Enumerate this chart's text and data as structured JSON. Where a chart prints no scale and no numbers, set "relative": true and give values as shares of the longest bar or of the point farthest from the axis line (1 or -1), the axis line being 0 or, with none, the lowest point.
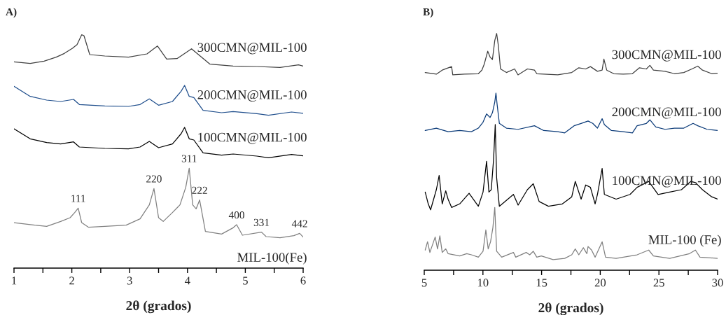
{
  "chart_data": [
    {
      "type": "line",
      "title": "A)",
      "xlabel": "2θ (grados)",
      "relative": true,
      "tick_labels": "x",
      "grid": false,
      "legend": false,
      "marker": "none",
      "line_style": "solid",
      "xlim": [
        1,
        6
      ],
      "xticks": [
        1,
        {
          "value": 1.5,
          "label": null
        },
        2,
        {
          "value": 2.5,
          "label": null
        },
        3,
        {
          "value": 3.5,
          "label": null
        },
        4,
        {
          "value": 4.5,
          "label": null
        },
        5,
        {
          "value": 5.5,
          "label": null
        },
        6
      ],
      "series": [
        {
          "name": "300CMN@MIL-100",
          "color": "#404040",
          "x": [
            1.0,
            1.28,
            1.52,
            1.73,
            1.87,
            2.01,
            2.09,
            2.17,
            2.21,
            2.31,
            2.57,
            2.98,
            3.3,
            3.48,
            3.64,
            3.82,
            4.07,
            4.19,
            4.39,
            4.79,
            5.2,
            5.6,
            5.92,
            6.0
          ],
          "values": [
            0.884,
            0.877,
            0.887,
            0.904,
            0.92,
            0.942,
            0.958,
            1.0,
            0.996,
            0.915,
            0.909,
            0.904,
            0.918,
            0.952,
            0.896,
            0.898,
            0.94,
            0.915,
            0.874,
            0.866,
            0.864,
            0.86,
            0.871,
            0.866
          ]
        },
        {
          "name": "200CMN@MIL-100",
          "color": "#1f4e8c",
          "x": [
            1.0,
            1.28,
            1.565,
            1.807,
            2.03,
            2.13,
            2.57,
            2.98,
            3.18,
            3.34,
            3.5,
            3.74,
            3.89,
            3.95,
            4.03,
            4.11,
            4.27,
            4.59,
            4.79,
            5.2,
            5.4,
            5.8,
            6.0
          ],
          "values": [
            0.779,
            0.736,
            0.72,
            0.714,
            0.723,
            0.701,
            0.695,
            0.693,
            0.701,
            0.725,
            0.698,
            0.714,
            0.758,
            0.783,
            0.736,
            0.731,
            0.676,
            0.666,
            0.671,
            0.662,
            0.655,
            0.669,
            0.663
          ]
        },
        {
          "name": "100CMN@MIL-100",
          "color": "#000000",
          "x": [
            1.0,
            1.28,
            1.565,
            1.807,
            2.03,
            2.13,
            2.57,
            2.98,
            3.18,
            3.34,
            3.5,
            3.74,
            3.89,
            3.95,
            4.03,
            4.11,
            4.27,
            4.59,
            4.79,
            5.2,
            5.4,
            5.8,
            6.0
          ],
          "values": [
            0.597,
            0.554,
            0.538,
            0.532,
            0.541,
            0.519,
            0.513,
            0.511,
            0.519,
            0.543,
            0.516,
            0.532,
            0.576,
            0.603,
            0.554,
            0.549,
            0.494,
            0.484,
            0.489,
            0.48,
            0.473,
            0.487,
            0.481
          ]
        },
        {
          "name": "MIL-100(Fe)",
          "color": "#808080",
          "x": [
            1.0,
            1.36,
            1.565,
            1.807,
            1.97,
            2.05,
            2.11,
            2.17,
            2.29,
            2.57,
            2.94,
            3.18,
            3.34,
            3.42,
            3.5,
            3.58,
            3.74,
            3.87,
            3.97,
            4.03,
            4.09,
            4.15,
            4.21,
            4.31,
            4.59,
            4.79,
            4.85,
            4.95,
            5.28,
            5.36,
            5.6,
            5.84,
            5.94,
            6.0
          ],
          "values": [
            0.195,
            0.184,
            0.179,
            0.2,
            0.216,
            0.238,
            0.257,
            0.195,
            0.175,
            0.179,
            0.184,
            0.211,
            0.271,
            0.341,
            0.216,
            0.2,
            0.238,
            0.271,
            0.346,
            0.428,
            0.271,
            0.254,
            0.292,
            0.157,
            0.146,
            0.173,
            0.186,
            0.141,
            0.154,
            0.135,
            0.13,
            0.139,
            0.149,
            0.133
          ]
        }
      ],
      "annotations": [
        {
          "text": "111",
          "x": 2.11,
          "y": 0.257
        },
        {
          "text": "220",
          "x": 3.42,
          "y": 0.341
        },
        {
          "text": "311",
          "x": 4.03,
          "y": 0.428
        },
        {
          "text": "222",
          "x": 4.21,
          "y": 0.292
        },
        {
          "text": "400",
          "x": 4.85,
          "y": 0.186
        },
        {
          "text": "331",
          "x": 5.28,
          "y": 0.154
        },
        {
          "text": "442",
          "x": 5.94,
          "y": 0.149
        }
      ]
    },
    {
      "type": "line",
      "title": "B)",
      "xlabel": "2θ (grados)",
      "relative": true,
      "tick_labels": "x",
      "grid": false,
      "legend": false,
      "marker": "none",
      "line_style": "solid",
      "xlim": [
        5,
        30
      ],
      "xticks": [
        5,
        {
          "value": 7.5,
          "label": null
        },
        10,
        {
          "value": 12.5,
          "label": null
        },
        15,
        {
          "value": 17.5,
          "label": null
        },
        20,
        {
          "value": 22.5,
          "label": null
        },
        25,
        {
          "value": 27.5,
          "label": null
        },
        30
      ],
      "series": [
        {
          "name": "300CMN@MIL-100",
          "color": "#404040",
          "x": [
            5.08,
            6.03,
            6.53,
            7.33,
            7.43,
            8.42,
            9.61,
            9.91,
            10.11,
            10.41,
            10.61,
            10.81,
            11.01,
            11.17,
            11.31,
            11.5,
            12.0,
            12.7,
            12.99,
            13.79,
            14.39,
            14.59,
            15.18,
            16.38,
            17.57,
            18.17,
            18.76,
            19.16,
            19.76,
            20.16,
            20.31,
            20.55,
            21.15,
            21.95,
            22.74,
            23.34,
            23.93,
            24.23,
            24.53,
            25.52,
            26.32,
            27.12,
            27.81,
            28.31,
            28.71,
            29.5,
            30.0
          ],
          "values": [
            0.835,
            0.828,
            0.845,
            0.86,
            0.825,
            0.828,
            0.83,
            0.845,
            0.87,
            0.925,
            0.9,
            0.89,
            0.97,
            1.0,
            0.95,
            0.85,
            0.835,
            0.85,
            0.825,
            0.85,
            0.845,
            0.83,
            0.828,
            0.825,
            0.835,
            0.855,
            0.85,
            0.86,
            0.84,
            0.845,
            0.892,
            0.845,
            0.83,
            0.828,
            0.83,
            0.855,
            0.85,
            0.865,
            0.845,
            0.84,
            0.83,
            0.835,
            0.85,
            0.862,
            0.845,
            0.83,
            0.832
          ]
        },
        {
          "name": "200CMN@MIL-100",
          "color": "#0a3a78",
          "x": [
            5.08,
            6.03,
            7.03,
            8.02,
            9.02,
            9.61,
            10.01,
            10.31,
            10.61,
            10.81,
            11.01,
            11.11,
            11.21,
            11.4,
            12.0,
            13.0,
            14.39,
            15.18,
            16.38,
            16.97,
            17.77,
            18.37,
            18.96,
            19.36,
            19.76,
            20.16,
            20.35,
            20.95,
            21.95,
            22.74,
            23.14,
            23.93,
            24.23,
            24.73,
            25.52,
            26.32,
            27.12,
            27.91,
            28.31,
            29.1,
            30.0
          ],
          "values": [
            0.59,
            0.6,
            0.585,
            0.59,
            0.585,
            0.6,
            0.625,
            0.66,
            0.645,
            0.665,
            0.71,
            0.748,
            0.7,
            0.62,
            0.6,
            0.595,
            0.61,
            0.59,
            0.585,
            0.58,
            0.61,
            0.62,
            0.63,
            0.62,
            0.6,
            0.64,
            0.615,
            0.59,
            0.585,
            0.58,
            0.61,
            0.62,
            0.635,
            0.605,
            0.595,
            0.6,
            0.6,
            0.62,
            0.61,
            0.595,
            0.59
          ]
        },
        {
          "name": "100CMN@MIL-100",
          "color": "#000000",
          "x": [
            5.08,
            5.34,
            5.54,
            6.03,
            6.27,
            6.53,
            6.83,
            7.03,
            7.33,
            8.02,
            8.82,
            9.61,
            10.01,
            10.31,
            10.51,
            10.71,
            10.91,
            11.05,
            11.17,
            11.4,
            12.6,
            13.0,
            13.79,
            14.29,
            14.79,
            15.58,
            16.77,
            17.57,
            17.87,
            18.37,
            18.76,
            19.16,
            19.56,
            19.76,
            20.16,
            20.35,
            21.35,
            22.54,
            23.14,
            24.13,
            24.93,
            25.92,
            26.92,
            27.71,
            28.11,
            28.71,
            29.5,
            30.0
          ],
          "values": [
            0.33,
            0.28,
            0.255,
            0.34,
            0.4,
            0.28,
            0.335,
            0.3,
            0.265,
            0.28,
            0.325,
            0.27,
            0.33,
            0.46,
            0.33,
            0.34,
            0.47,
            0.615,
            0.39,
            0.27,
            0.32,
            0.275,
            0.34,
            0.365,
            0.29,
            0.27,
            0.28,
            0.31,
            0.375,
            0.3,
            0.36,
            0.35,
            0.28,
            0.32,
            0.43,
            0.32,
            0.3,
            0.32,
            0.35,
            0.375,
            0.32,
            0.33,
            0.34,
            0.375,
            0.37,
            0.34,
            0.31,
            0.3
          ]
        },
        {
          "name": "MIL-100 (Fe)",
          "color": "#808080",
          "x": [
            5.08,
            5.28,
            5.48,
            5.93,
            6.13,
            6.33,
            6.53,
            6.83,
            7.03,
            8.02,
            8.62,
            9.02,
            9.61,
            10.01,
            10.25,
            10.45,
            10.65,
            10.85,
            11.01,
            11.17,
            11.6,
            12.6,
            12.8,
            13.69,
            13.99,
            14.29,
            14.59,
            14.98,
            15.98,
            16.97,
            17.57,
            17.87,
            18.17,
            18.56,
            18.86,
            18.96,
            19.26,
            19.56,
            20.16,
            20.45,
            21.35,
            23.14,
            24.13,
            24.53,
            25.92,
            27.61,
            28.11,
            28.5,
            30.0
          ],
          "values": [
            0.085,
            0.12,
            0.075,
            0.14,
            0.09,
            0.145,
            0.075,
            0.09,
            0.07,
            0.06,
            0.07,
            0.065,
            0.055,
            0.08,
            0.17,
            0.09,
            0.12,
            0.18,
            0.265,
            0.08,
            0.055,
            0.075,
            0.055,
            0.075,
            0.065,
            0.08,
            0.055,
            0.06,
            0.045,
            0.05,
            0.065,
            0.09,
            0.065,
            0.095,
            0.07,
            0.1,
            0.085,
            0.055,
            0.12,
            0.055,
            0.05,
            0.065,
            0.085,
            0.06,
            0.05,
            0.07,
            0.085,
            0.055,
            0.05
          ]
        }
      ]
    }
  ]
}
